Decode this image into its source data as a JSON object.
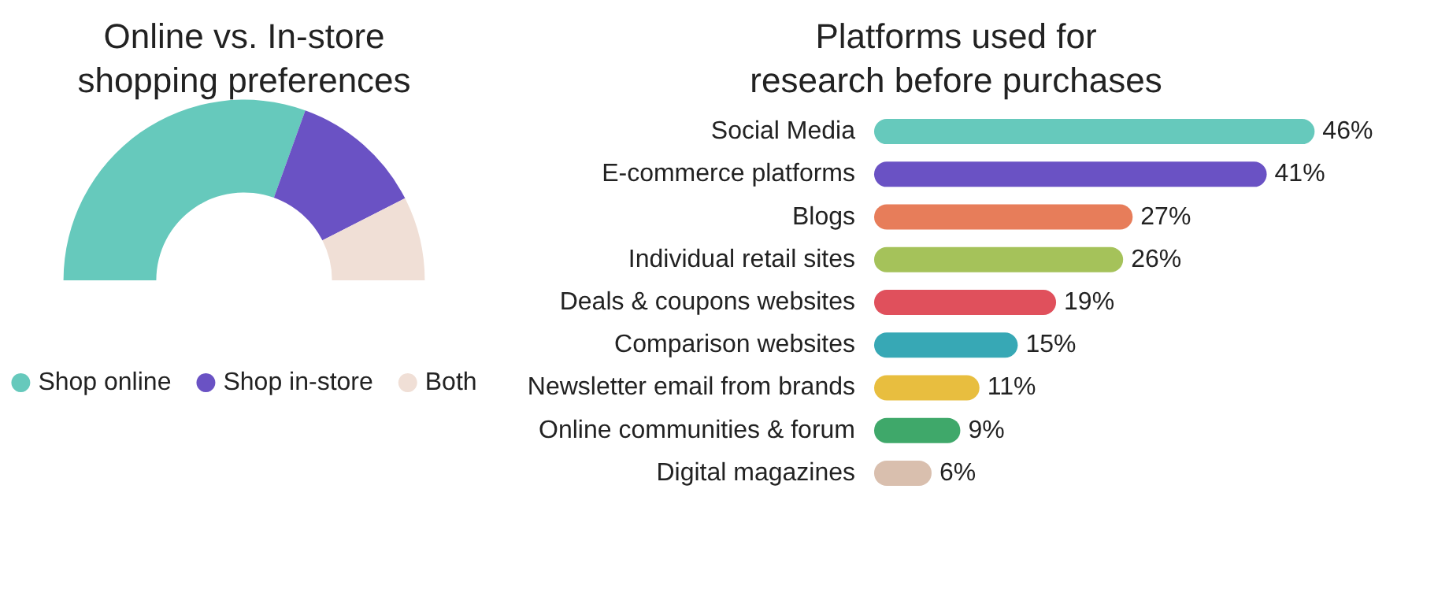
{
  "chart_data": [
    {
      "type": "donut",
      "title": "Online vs. In-store\nshopping preferences",
      "categories": [
        "Shop online",
        "Shop in-store",
        "Both"
      ],
      "values": [
        61,
        24,
        15
      ],
      "colors": [
        "#66c9bc",
        "#6a52c4",
        "#f0dfd6"
      ],
      "legend": "bottom"
    },
    {
      "type": "bar",
      "orientation": "horizontal",
      "title": "Platforms used for\nresearch before purchases",
      "categories": [
        "Social Media",
        "E-commerce platforms",
        "Blogs",
        "Individual retail sites",
        "Deals & coupons websites",
        "Comparison websites",
        "Newsletter email from brands",
        "Online communities & forum",
        "Digital magazines"
      ],
      "values": [
        46,
        41,
        27,
        26,
        19,
        15,
        11,
        9,
        6
      ],
      "colors": [
        "#66c9bc",
        "#6a52c4",
        "#e77d5a",
        "#a5c25a",
        "#e0505c",
        "#37a8b5",
        "#e8be3f",
        "#3fa86a",
        "#d9bfae"
      ],
      "value_labels": [
        "46%",
        "41%",
        "27%",
        "26%",
        "19%",
        "15%",
        "11%",
        "9%",
        "6%"
      ],
      "legend": false
    }
  ]
}
